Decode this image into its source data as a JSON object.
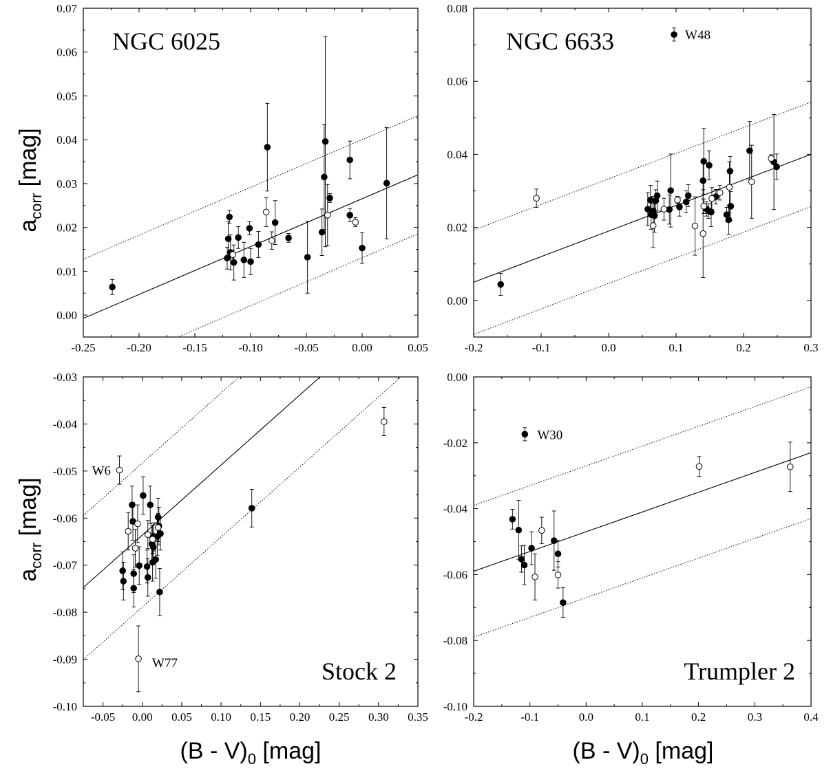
{
  "figure": {
    "xlabel": {
      "main": "(B - V)",
      "sub": "0",
      "tail": " [mag]"
    },
    "ylabel": {
      "main": "a",
      "sub": "corr",
      "tail": " [mag]"
    }
  },
  "chart_data": [
    {
      "type": "scatter",
      "title": "NGC 6025",
      "xlim": [
        -0.25,
        0.05
      ],
      "ylim": [
        -0.005,
        0.07
      ],
      "xticks": [
        "-0.25",
        "-0.20",
        "-0.15",
        "-0.10",
        "-0.05",
        "0.00",
        "0.05"
      ],
      "yticks": [
        "0.00",
        "0.01",
        "0.02",
        "0.03",
        "0.04",
        "0.05",
        "0.06",
        "0.07"
      ],
      "fit": {
        "slope": 0.1092,
        "intercept": 0.02655
      },
      "band": 0.0135,
      "series": [
        {
          "marker": "filled",
          "points": [
            [
              -0.224,
              0.0064,
              0.0017
            ],
            [
              -0.121,
              0.013,
              0.0025
            ],
            [
              -0.12,
              0.0174,
              0.004
            ],
            [
              -0.119,
              0.0224,
              0.0015
            ],
            [
              -0.118,
              0.0143,
              0.004
            ],
            [
              -0.115,
              0.012,
              0.004
            ],
            [
              -0.111,
              0.0177,
              0.0025
            ],
            [
              -0.106,
              0.0126,
              0.004
            ],
            [
              -0.101,
              0.0198,
              0.0015
            ],
            [
              -0.1,
              0.0122,
              0.003
            ],
            [
              -0.093,
              0.0161,
              0.003
            ],
            [
              -0.085,
              0.0383,
              0.01
            ],
            [
              -0.078,
              0.0211,
              0.005
            ],
            [
              -0.066,
              0.0176,
              0.001
            ],
            [
              -0.049,
              0.0132,
              0.0082
            ],
            [
              -0.036,
              0.0189,
              0.0053
            ],
            [
              -0.034,
              0.0315,
              0.012
            ],
            [
              -0.033,
              0.0396,
              0.024
            ],
            [
              -0.029,
              0.0267,
              0.001
            ],
            [
              -0.011,
              0.0354,
              0.0043
            ],
            [
              -0.011,
              0.0228,
              0.0015
            ],
            [
              0.0,
              0.0153,
              0.0035
            ],
            [
              0.022,
              0.0301,
              0.0127
            ]
          ]
        },
        {
          "marker": "open",
          "points": [
            [
              -0.116,
              0.0138,
              0.001
            ],
            [
              -0.086,
              0.0235,
              0.0033
            ],
            [
              -0.081,
              0.017,
              0.002
            ],
            [
              -0.031,
              0.0228,
              0.007
            ],
            [
              -0.006,
              0.0212,
              0.001
            ]
          ]
        }
      ],
      "annotations": []
    },
    {
      "type": "scatter",
      "title": "NGC 6633",
      "xlim": [
        -0.2,
        0.3
      ],
      "ylim": [
        -0.01,
        0.08
      ],
      "xticks": [
        "-0.2",
        "-0.1",
        "0.0",
        "0.1",
        "0.2",
        "0.3"
      ],
      "yticks": [
        "0.00",
        "0.02",
        "0.04",
        "0.06",
        "0.08"
      ],
      "fit": {
        "slope": 0.07,
        "intercept": 0.019
      },
      "band": 0.0143,
      "series": [
        {
          "marker": "filled",
          "points": [
            [
              -0.16,
              0.0044,
              0.003
            ],
            [
              0.058,
              0.025,
              0.0045
            ],
            [
              0.062,
              0.0275,
              0.004
            ],
            [
              0.063,
              0.0235,
              0.004
            ],
            [
              0.066,
              0.0245,
              0.004
            ],
            [
              0.068,
              0.0232,
              0.0045
            ],
            [
              0.07,
              0.0273,
              0.003
            ],
            [
              0.072,
              0.0287,
              0.004
            ],
            [
              0.09,
              0.0249,
              0.004
            ],
            [
              0.092,
              0.0301,
              0.01
            ],
            [
              0.105,
              0.0256,
              0.0025
            ],
            [
              0.115,
              0.027,
              0.003
            ],
            [
              0.118,
              0.0287,
              0.003
            ],
            [
              0.14,
              0.0328,
              0.005
            ],
            [
              0.141,
              0.0381,
              0.009
            ],
            [
              0.145,
              0.0251,
              0.002
            ],
            [
              0.148,
              0.0245,
              0.002
            ],
            [
              0.149,
              0.037,
              0.004
            ],
            [
              0.152,
              0.0242,
              0.004
            ],
            [
              0.159,
              0.0284,
              0.002
            ],
            [
              0.175,
              0.0235,
              0.002
            ],
            [
              0.178,
              0.0221,
              0.004
            ],
            [
              0.18,
              0.0354,
              0.004
            ],
            [
              0.181,
              0.0258,
              0.004
            ],
            [
              0.209,
              0.041,
              0.008
            ],
            [
              0.245,
              0.0379,
              0.013
            ],
            [
              0.249,
              0.0366,
              0.0035
            ],
            [
              0.097,
              0.0728,
              0.0018
            ]
          ]
        },
        {
          "marker": "open",
          "points": [
            [
              -0.107,
              0.028,
              0.0025
            ],
            [
              0.066,
              0.0205,
              0.006
            ],
            [
              0.082,
              0.025,
              0.003
            ],
            [
              0.102,
              0.0275,
              0.001
            ],
            [
              0.128,
              0.0204,
              0.008
            ],
            [
              0.14,
              0.0183,
              0.012
            ],
            [
              0.141,
              0.0258,
              0.002
            ],
            [
              0.153,
              0.0279,
              0.003
            ],
            [
              0.165,
              0.0295,
              0.002
            ],
            [
              0.179,
              0.031,
              0.007
            ],
            [
              0.212,
              0.0325,
              0.01
            ],
            [
              0.241,
              0.0389,
              0.001
            ]
          ]
        }
      ],
      "annotations": [
        {
          "text": "W48",
          "x": 0.097,
          "y": 0.0728
        }
      ]
    },
    {
      "type": "scatter",
      "title": "Stock 2",
      "xlim": [
        -0.075,
        0.35
      ],
      "ylim": [
        -0.1,
        -0.03
      ],
      "xticks": [
        "-0.05",
        "0.00",
        "0.05",
        "0.10",
        "0.15",
        "0.20",
        "0.25",
        "0.30",
        "0.35"
      ],
      "yticks": [
        "-0.10",
        "-0.09",
        "-0.08",
        "-0.07",
        "-0.06",
        "-0.05",
        "-0.04",
        "-0.03"
      ],
      "fit": {
        "slope": 0.1488,
        "intercept": -0.0636
      },
      "band": 0.0153,
      "series": [
        {
          "marker": "filled",
          "points": [
            [
              -0.025,
              -0.0712,
              0.004
            ],
            [
              -0.024,
              -0.0734,
              0.004
            ],
            [
              -0.013,
              -0.0572,
              0.004
            ],
            [
              -0.012,
              -0.0607,
              0.004
            ],
            [
              -0.011,
              -0.0718,
              0.004
            ],
            [
              -0.011,
              -0.0749,
              0.004
            ],
            [
              -0.004,
              -0.0701,
              0.004
            ],
            [
              0.001,
              -0.0552,
              0.004
            ],
            [
              0.006,
              -0.0703,
              0.0035
            ],
            [
              0.007,
              -0.0726,
              0.004
            ],
            [
              0.01,
              -0.0572,
              0.004
            ],
            [
              0.012,
              -0.0655,
              0.004
            ],
            [
              0.013,
              -0.0694,
              0.004
            ],
            [
              0.014,
              -0.064,
              0.003
            ],
            [
              0.017,
              -0.0688,
              0.004
            ],
            [
              0.019,
              -0.0639,
              0.004
            ],
            [
              0.02,
              -0.0598,
              0.004
            ],
            [
              0.021,
              -0.0617,
              0.004
            ],
            [
              0.022,
              -0.0757,
              0.005
            ],
            [
              0.023,
              -0.0633,
              0.0035
            ],
            [
              0.014,
              -0.0662,
              0.003
            ],
            [
              0.139,
              -0.0579,
              0.004
            ]
          ]
        },
        {
          "marker": "open",
          "points": [
            [
              -0.029,
              -0.0498,
              0.003
            ],
            [
              -0.018,
              -0.0628,
              0.004
            ],
            [
              -0.009,
              -0.0664,
              0.004
            ],
            [
              -0.006,
              -0.0612,
              0.004
            ],
            [
              -0.005,
              -0.0899,
              0.007
            ],
            [
              0.007,
              -0.0635,
              0.003
            ],
            [
              0.013,
              -0.0645,
              0.003
            ],
            [
              0.02,
              -0.062,
              0.003
            ],
            [
              0.307,
              -0.0395,
              0.003
            ]
          ]
        }
      ],
      "annotations": [
        {
          "text": "W6",
          "x": -0.029,
          "y": -0.0498
        },
        {
          "text": "W77",
          "x": -0.005,
          "y": -0.0899
        }
      ]
    },
    {
      "type": "scatter",
      "title": "Trumpler 2",
      "xlim": [
        -0.2,
        0.4
      ],
      "ylim": [
        -0.1,
        0.0
      ],
      "xticks": [
        "-0.2",
        "-0.1",
        "0.0",
        "0.1",
        "0.2",
        "0.3",
        "0.4"
      ],
      "yticks": [
        "-0.10",
        "-0.08",
        "-0.06",
        "-0.04",
        "-0.02",
        "0.00"
      ],
      "fit": {
        "slope": 0.06,
        "intercept": -0.047
      },
      "band": 0.02,
      "series": [
        {
          "marker": "filled",
          "points": [
            [
              -0.131,
              -0.0432,
              0.003
            ],
            [
              -0.12,
              -0.0465,
              0.009
            ],
            [
              -0.115,
              -0.0553,
              0.004
            ],
            [
              -0.11,
              -0.0571,
              0.006
            ],
            [
              -0.097,
              -0.052,
              0.005
            ],
            [
              -0.057,
              -0.0497,
              0.009
            ],
            [
              -0.05,
              -0.0537,
              0.004
            ],
            [
              -0.041,
              -0.0685,
              0.0045
            ],
            [
              -0.109,
              -0.0174,
              0.002
            ]
          ]
        },
        {
          "marker": "open",
          "points": [
            [
              -0.091,
              -0.0607,
              0.007
            ],
            [
              -0.079,
              -0.0466,
              0.004
            ],
            [
              -0.05,
              -0.0601,
              0.004
            ],
            [
              0.201,
              -0.0272,
              0.003
            ],
            [
              0.363,
              -0.0273,
              0.0075
            ]
          ]
        }
      ],
      "annotations": [
        {
          "text": "W30",
          "x": -0.109,
          "y": -0.0174
        }
      ]
    }
  ]
}
